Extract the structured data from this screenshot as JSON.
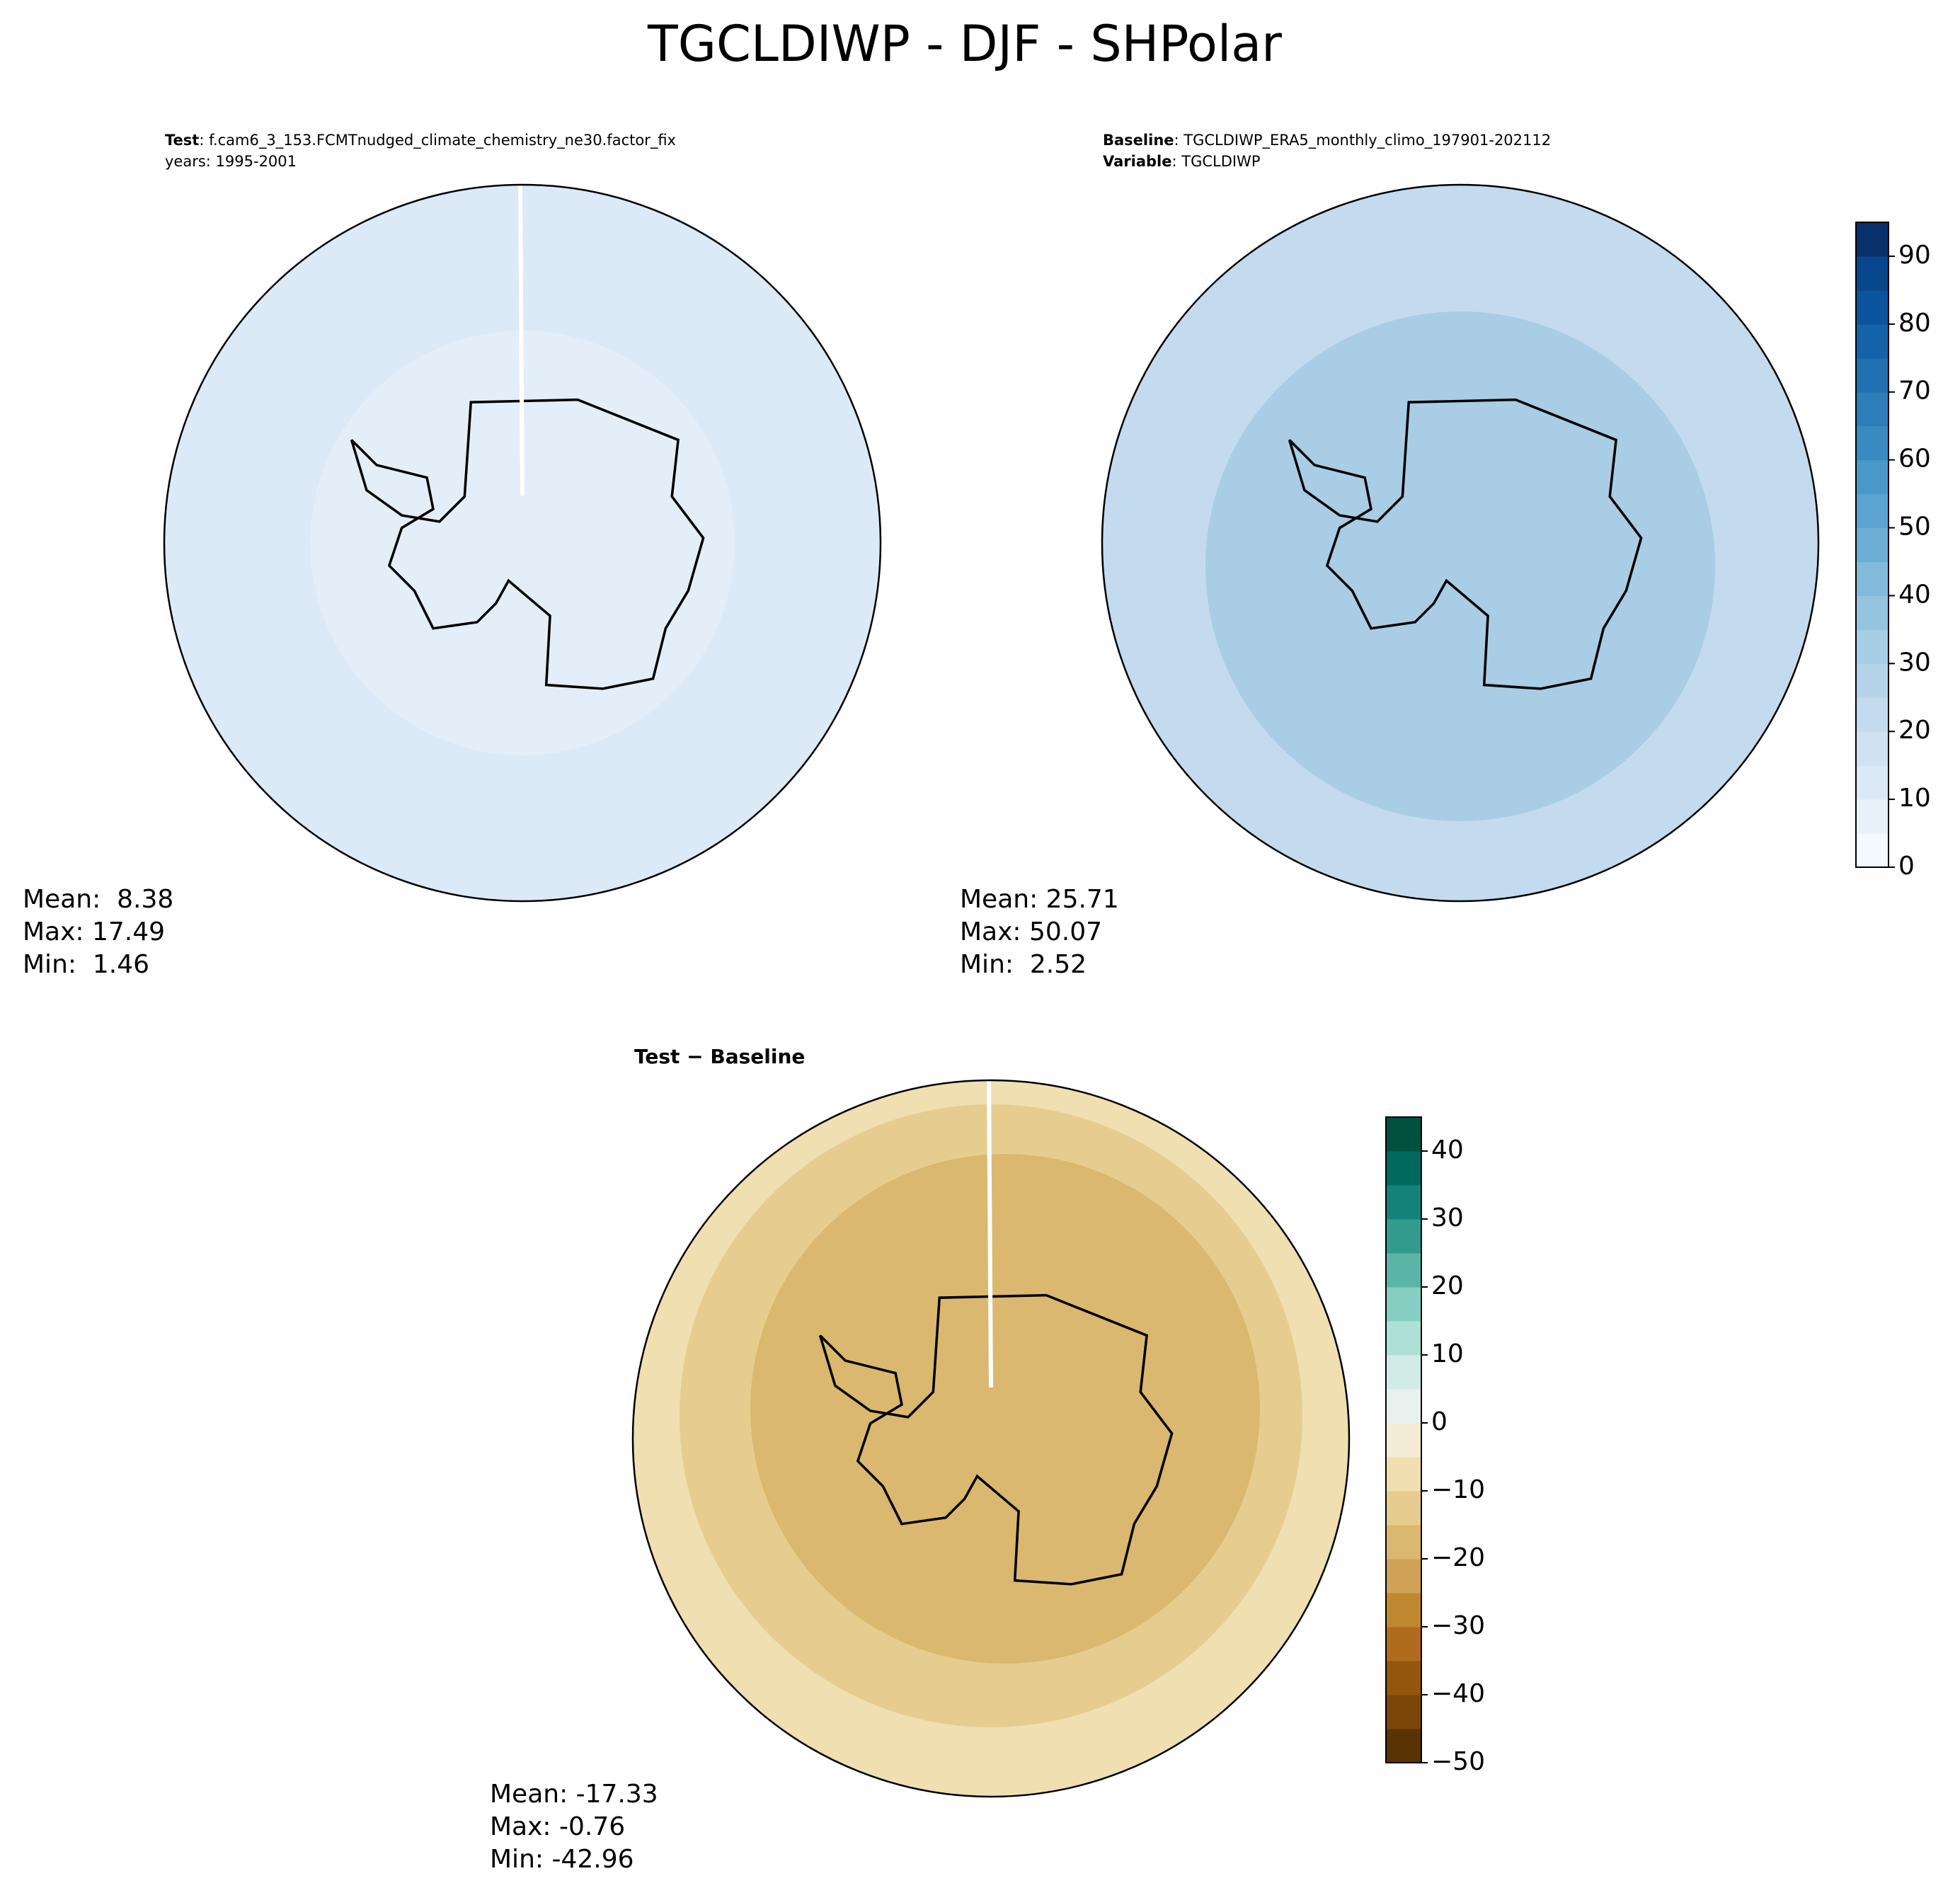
{
  "title": "TGCLDIWP - DJF - SHPolar",
  "test": {
    "label": "Test",
    "text": ": f.cam6_3_153.FCMTnudged_climate_chemistry_ne30.factor_fix",
    "years": "years: 1995-2001",
    "stats": [
      "Mean:  8.38",
      "Max: 17.49",
      "Min:  1.46"
    ]
  },
  "baseline": {
    "label": "Baseline",
    "text": ": TGCLDIWP_ERA5_monthly_climo_197901-202112",
    "variable_label": "Variable",
    "variable_text": ": TGCLDIWP",
    "stats": [
      "Mean: 25.71",
      "Max: 50.07",
      "Min:  2.52"
    ]
  },
  "diff": {
    "label": "Test − Baseline",
    "stats": [
      "Mean: -17.33",
      "Max: -0.76",
      "Min: -42.96"
    ]
  },
  "colorbar_main": {
    "lim": [
      0,
      95
    ],
    "ticks": [
      0,
      10,
      20,
      30,
      40,
      50,
      60,
      70,
      80,
      90
    ],
    "colors": [
      "#f4f9fe",
      "#e8f1fa",
      "#dce9f6",
      "#d0e1f2",
      "#c4daee",
      "#b6d4e9",
      "#a6cee4",
      "#94c4df",
      "#82badb",
      "#6daed5",
      "#5ba3d0",
      "#4a98c9",
      "#3a8ac2",
      "#2c7dba",
      "#1f6fb1",
      "#1462a8",
      "#0a549e",
      "#08468b",
      "#08306b"
    ]
  },
  "colorbar_diff": {
    "lim": [
      -50,
      45
    ],
    "ticks": [
      {
        "value": -50,
        "label": "−50"
      },
      {
        "value": -40,
        "label": "−40"
      },
      {
        "value": -30,
        "label": "−30"
      },
      {
        "value": -20,
        "label": "−20"
      },
      {
        "value": -10,
        "label": "−10"
      },
      0,
      10,
      20,
      30,
      40
    ],
    "colors": [
      "#5a3305",
      "#7a4709",
      "#94550c",
      "#b06b1f",
      "#c08731",
      "#cfa255",
      "#dbb86f",
      "#e6cd8f",
      "#efdfb1",
      "#f5ecd6",
      "#e9f1ef",
      "#d1ece7",
      "#aee0d6",
      "#86cfc2",
      "#5bb5a6",
      "#339b8d",
      "#15827a",
      "#02695f",
      "#01513f"
    ]
  }
}
